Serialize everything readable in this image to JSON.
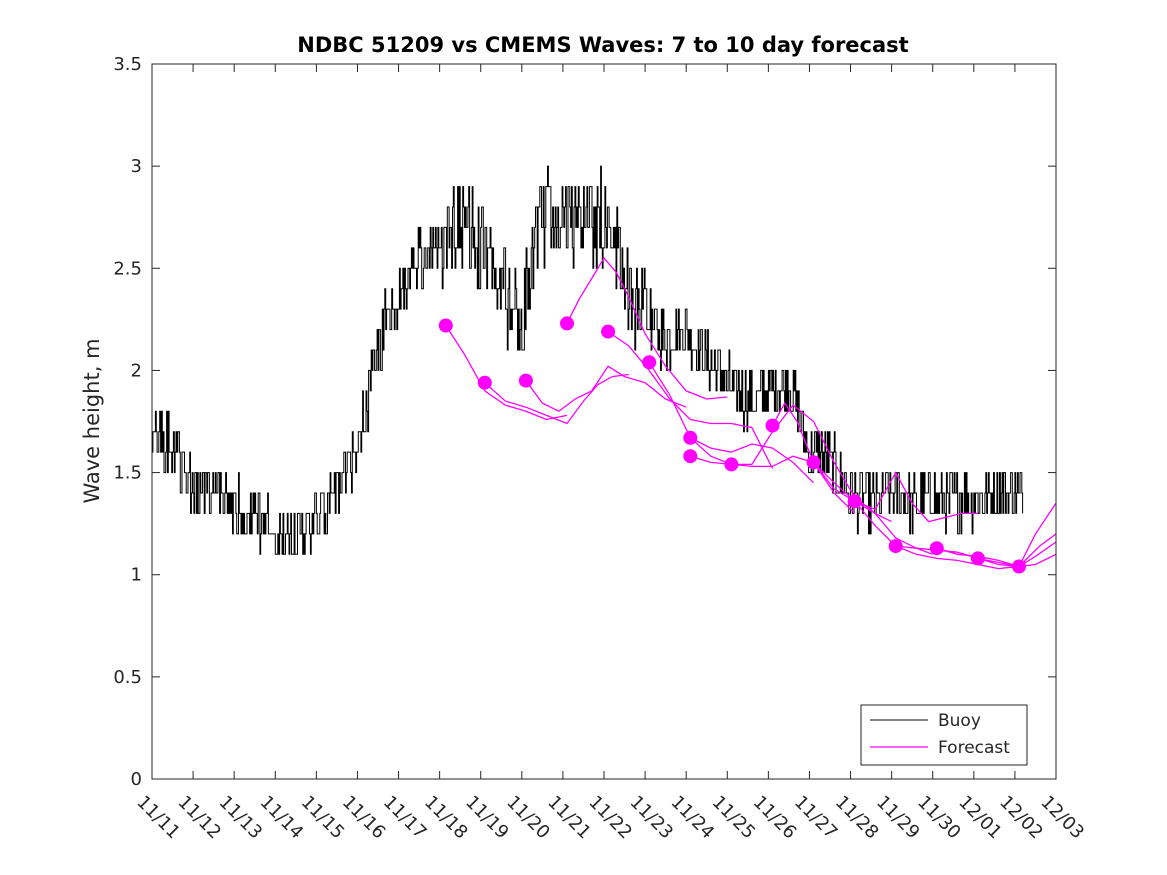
{
  "chart_data": {
    "type": "line",
    "title": "NDBC 51209 vs CMEMS Waves: 7 to 10 day forecast",
    "xlabel": "",
    "ylabel": "Wave height, m",
    "xlim": [
      0,
      22
    ],
    "ylim": [
      0,
      3.5
    ],
    "x_tick_labels": [
      "11/11",
      "11/12",
      "11/13",
      "11/14",
      "11/15",
      "11/16",
      "11/17",
      "11/18",
      "11/19",
      "11/20",
      "11/21",
      "11/22",
      "11/23",
      "11/24",
      "11/25",
      "11/26",
      "11/27",
      "11/28",
      "11/29",
      "11/30",
      "12/01",
      "12/02",
      "12/03"
    ],
    "y_ticks": [
      0,
      0.5,
      1,
      1.5,
      2,
      2.5,
      3,
      3.5
    ],
    "y_tick_labels": [
      "0",
      "0.5",
      "1",
      "1.5",
      "2",
      "2.5",
      "3",
      "3.5"
    ],
    "grid": false,
    "legend": {
      "position": "bottom-right",
      "entries": [
        "Buoy",
        "Forecast"
      ]
    },
    "colors": {
      "buoy": "#000000",
      "forecast": "#ff00ff"
    },
    "buoy": {
      "name": "Buoy",
      "x": [
        0,
        0.5,
        1,
        1.5,
        2,
        2.5,
        3,
        3.5,
        4,
        4.5,
        5,
        5.5,
        6,
        6.5,
        7,
        7.5,
        8,
        8.5,
        9,
        9.5,
        10,
        10.5,
        11,
        11.5,
        12,
        12.5,
        13,
        13.5,
        14,
        14.5,
        15,
        15.5,
        16,
        16.5,
        17,
        17.5,
        18,
        18.5,
        19,
        19.5,
        20,
        20.5,
        21,
        21.2
      ],
      "y": [
        1.75,
        1.6,
        1.4,
        1.4,
        1.35,
        1.3,
        1.2,
        1.2,
        1.25,
        1.4,
        1.6,
        2.15,
        2.35,
        2.55,
        2.6,
        2.75,
        2.6,
        2.4,
        2.25,
        2.75,
        2.75,
        2.7,
        2.75,
        2.45,
        2.25,
        2.15,
        2.2,
        2.05,
        1.95,
        1.85,
        1.9,
        1.95,
        1.6,
        1.55,
        1.4,
        1.35,
        1.4,
        1.35,
        1.38,
        1.36,
        1.38,
        1.4,
        1.4,
        1.38
      ],
      "noise_amplitude": 0.14
    },
    "forecast": {
      "name": "Forecast",
      "series": [
        {
          "x": [
            7.15,
            7.6,
            8.1,
            8.6,
            9.1,
            9.6,
            10.1
          ],
          "y": [
            2.22,
            2.08,
            1.9,
            1.83,
            1.8,
            1.76,
            1.78
          ]
        },
        {
          "x": [
            8.1,
            8.6,
            9.1,
            9.6,
            10.1,
            10.5,
            10.85,
            11.2,
            11.6
          ],
          "y": [
            1.94,
            1.85,
            1.82,
            1.78,
            1.74,
            1.85,
            1.93,
            1.97,
            1.98
          ]
        },
        {
          "x": [
            9.1,
            9.5,
            9.9,
            10.3,
            10.7,
            11.1,
            11.5,
            12.0,
            12.5,
            13.0
          ],
          "y": [
            1.95,
            1.84,
            1.8,
            1.86,
            1.9,
            2.02,
            1.97,
            1.94,
            1.86,
            1.82
          ]
        },
        {
          "x": [
            10.1,
            10.4,
            10.7,
            11.0,
            11.3,
            11.6,
            12.0,
            12.5,
            13.0,
            13.5,
            14.0
          ],
          "y": [
            2.23,
            2.35,
            2.45,
            2.55,
            2.48,
            2.36,
            2.18,
            2.02,
            1.9,
            1.86,
            1.87
          ]
        },
        {
          "x": [
            11.1,
            11.6,
            12.1,
            12.6,
            13.1,
            13.6,
            14.1,
            14.6,
            15.1
          ],
          "y": [
            2.19,
            2.12,
            2.0,
            1.86,
            1.76,
            1.74,
            1.74,
            1.72,
            1.52
          ]
        },
        {
          "x": [
            12.1,
            12.6,
            13.1,
            13.6,
            14.1,
            14.6,
            15.1,
            15.6,
            16.1
          ],
          "y": [
            2.04,
            1.88,
            1.67,
            1.62,
            1.6,
            1.64,
            1.62,
            1.55,
            1.45
          ]
        },
        {
          "x": [
            13.1,
            13.6,
            14.1,
            14.6,
            15.1,
            15.6,
            16.1,
            16.6,
            17.1
          ],
          "y": [
            1.67,
            1.58,
            1.54,
            1.53,
            1.53,
            1.58,
            1.55,
            1.4,
            1.3
          ]
        },
        {
          "x": [
            13.1,
            13.6,
            14.1,
            14.6,
            15.1,
            15.6,
            16.1,
            16.6,
            17.1,
            17.6,
            18.0
          ],
          "y": [
            1.58,
            1.55,
            1.54,
            1.54,
            1.7,
            1.83,
            1.75,
            1.55,
            1.38,
            1.3,
            1.26
          ]
        },
        {
          "x": [
            15.1,
            15.4,
            15.7,
            16.1,
            16.6,
            17.1,
            17.6,
            18.1,
            18.6,
            19.0
          ],
          "y": [
            1.73,
            1.84,
            1.75,
            1.55,
            1.42,
            1.36,
            1.3,
            1.18,
            1.13,
            1.1
          ]
        },
        {
          "x": [
            16.1,
            16.6,
            17.1,
            17.6,
            18.1,
            18.5,
            18.9,
            19.3,
            19.7,
            20.1
          ],
          "y": [
            1.55,
            1.45,
            1.36,
            1.32,
            1.5,
            1.35,
            1.26,
            1.28,
            1.3,
            1.3
          ]
        },
        {
          "x": [
            17.1,
            17.6,
            18.1,
            18.6,
            19.1,
            19.6,
            20.1,
            20.6,
            21.1,
            21.6,
            22.0
          ],
          "y": [
            1.36,
            1.24,
            1.14,
            1.1,
            1.08,
            1.07,
            1.05,
            1.03,
            1.04,
            1.14,
            1.2
          ]
        },
        {
          "x": [
            18.1,
            18.6,
            19.1,
            19.6,
            20.1,
            20.6,
            21.1,
            21.5,
            22.0
          ],
          "y": [
            1.14,
            1.13,
            1.12,
            1.11,
            1.08,
            1.05,
            1.04,
            1.05,
            1.1
          ]
        },
        {
          "x": [
            19.1,
            19.6,
            20.1,
            20.6,
            21.1,
            21.5,
            22.0
          ],
          "y": [
            1.13,
            1.1,
            1.09,
            1.07,
            1.04,
            1.2,
            1.35
          ]
        },
        {
          "x": [
            20.1,
            20.6,
            21.1,
            21.5,
            22.0
          ],
          "y": [
            1.08,
            1.06,
            1.04,
            1.09,
            1.16
          ]
        }
      ],
      "markers": {
        "x": [
          7.15,
          8.1,
          9.1,
          10.1,
          11.1,
          12.1,
          13.1,
          13.1,
          14.1,
          15.1,
          16.1,
          17.1,
          18.1,
          19.1,
          20.1,
          21.1
        ],
        "y": [
          2.22,
          1.94,
          1.95,
          2.23,
          2.19,
          2.04,
          1.67,
          1.58,
          1.54,
          1.73,
          1.55,
          1.36,
          1.14,
          1.13,
          1.08,
          1.04
        ]
      }
    }
  }
}
